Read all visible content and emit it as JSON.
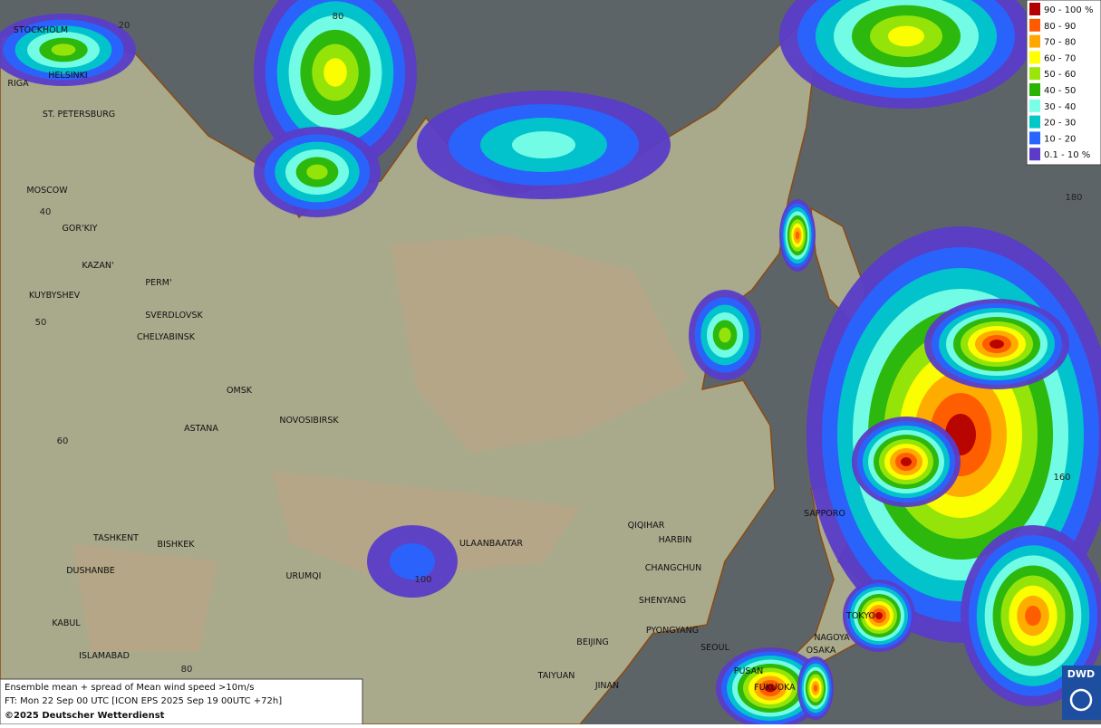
{
  "map": {
    "cities": [
      "STOCKHOLM",
      "HELSINKI",
      "RIGA",
      "ST. PETERSBURG",
      "MOSCOW",
      "GOR'KIY",
      "KAZAN'",
      "PERM'",
      "KUYBYSHEV",
      "SVERDLOVSK",
      "CHELYABINSK",
      "OMSK",
      "ASTANA",
      "NOVOSIBIRSK",
      "TASHKENT",
      "BISHKEK",
      "DUSHANBE",
      "URUMQI",
      "KABUL",
      "ISLAMABAD",
      "ULAANBAATAR",
      "QIQIHAR",
      "HARBIN",
      "CHANGCHUN",
      "SHENYANG",
      "BEIJING",
      "PYONGYANG",
      "SEOUL",
      "TAIYUAN",
      "JINAN",
      "PUSAN",
      "FUKUOKA",
      "NAGOYA",
      "OSAKA",
      "TOKYO",
      "SAPPORO"
    ],
    "graticule_labels": [
      "20",
      "80",
      "40",
      "50",
      "60",
      "100",
      "80",
      "180",
      "160"
    ]
  },
  "legend": [
    {
      "label": "90 - 100 %",
      "color": "#b40000"
    },
    {
      "label": "80 - 90",
      "color": "#ff5a00"
    },
    {
      "label": "70 - 80",
      "color": "#ffa800"
    },
    {
      "label": "60 - 70",
      "color": "#ffff00"
    },
    {
      "label": "50 - 60",
      "color": "#9be60a"
    },
    {
      "label": "40 - 50",
      "color": "#28b400"
    },
    {
      "label": "30 - 40",
      "color": "#78ffe6"
    },
    {
      "label": "20 - 30",
      "color": "#00c8c8"
    },
    {
      "label": "10 - 20",
      "color": "#2864ff"
    },
    {
      "label": "0.1 - 10 %",
      "color": "#5a3cc8"
    }
  ],
  "info": [
    "Ensemble mean + spread of Mean wind speed >10m/s",
    "FT: Mon 22 Sep 00 UTC [ICON EPS 2025 Sep 19 00UTC +72h]",
    "©2025 Deutscher Wetterdienst"
  ],
  "logo": "DWD"
}
